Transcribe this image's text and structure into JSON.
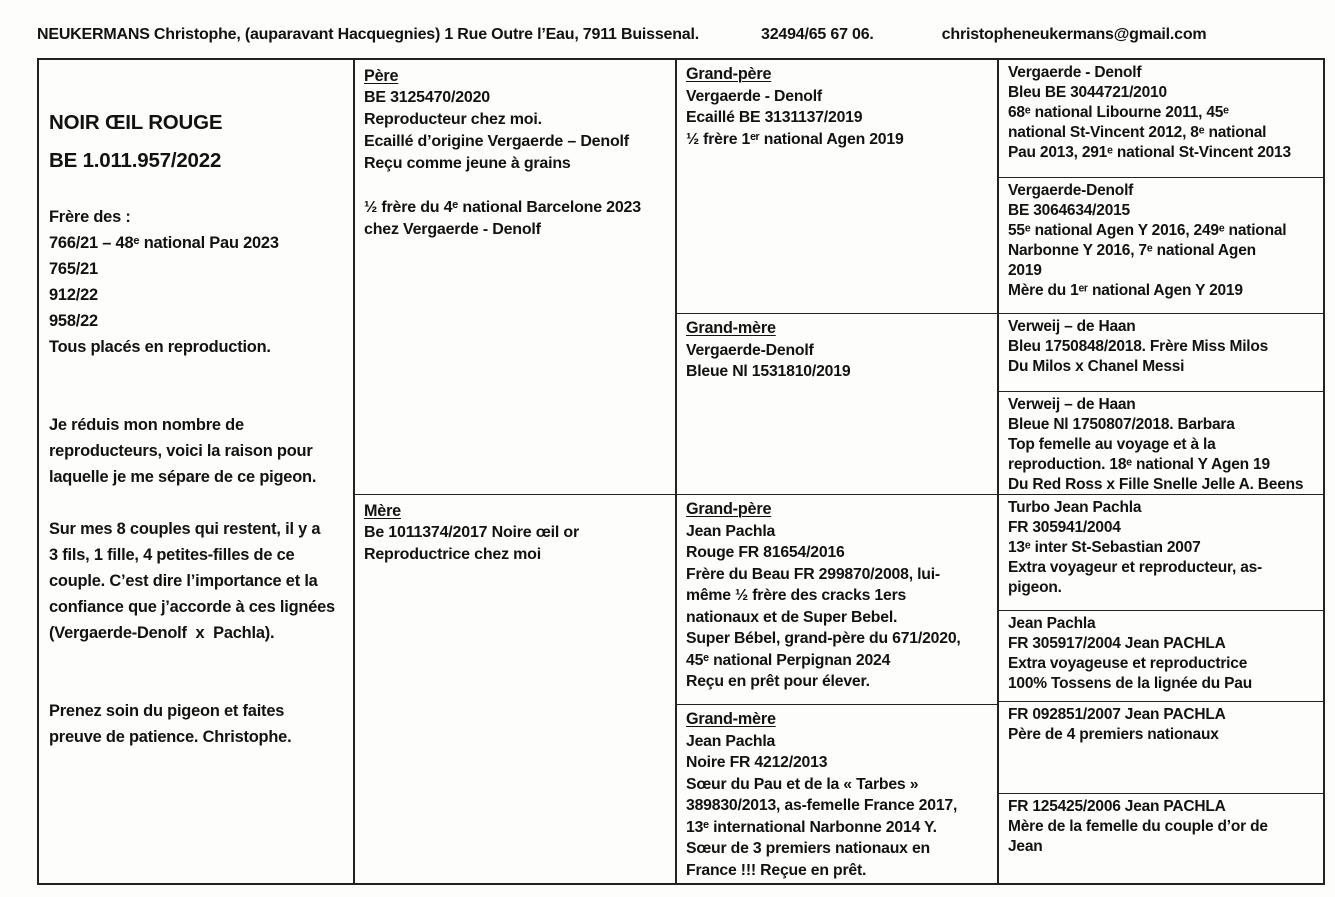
{
  "header": {
    "owner": "NEUKERMANS Christophe, (auparavant Hacquegnies) 1 Rue Outre l’Eau, 7911 Buissenal.",
    "phone": "32494/65 67 06.",
    "email": "christopheneukermans@gmail.com"
  },
  "subject": {
    "title": "NOIR ŒIL ROUGE\nBE 1.011.957/2022",
    "notes": "Frère des :\n766/21 – 48ᵉ national Pau 2023\n765/21\n912/22\n958/22\nTous placés en reproduction.\n\n\nJe réduis mon nombre de\nreproducteurs, voici la raison pour\nlaquelle je me sépare de ce pigeon.\n\nSur mes 8 couples qui restent, il y a\n3 fils, 1 fille, 4 petites-filles de ce\ncouple. C’est dire l’importance et la\nconfiance que j’accorde à ces lignées\n(Vergaerde-Denolf  x  Pachla).\n\n\nPrenez soin du pigeon et faites\npreuve de patience. Christophe."
  },
  "pedigree": {
    "pere": {
      "label": "Père",
      "text": "BE 3125470/2020\nReproducteur chez moi.\nEcaillé d’origine Vergaerde – Denolf\nReçu comme jeune à grains\n\n½ frère du 4ᵉ national Barcelone 2023\nchez Vergaerde - Denolf"
    },
    "mere": {
      "label": "Mère",
      "text": "Be 1011374/2017 Noire œil or\nReproductrice chez moi"
    },
    "gp1": {
      "label": "Grand-père",
      "text": "Vergaerde - Denolf\nEcaillé BE 3131137/2019\n½ frère 1ᵉʳ national Agen 2019"
    },
    "gm1": {
      "label": "Grand-mère",
      "text": "Vergaerde-Denolf\nBleue Nl 1531810/2019"
    },
    "gp2": {
      "label": "Grand-père",
      "text": "Jean Pachla\nRouge FR 81654/2016\nFrère du Beau FR 299870/2008, lui-\nmême ½ frère des cracks 1ers\nnationaux et de Super Bebel.\nSuper Bébel, grand-père du 671/2020,\n45ᵉ national Perpignan 2024\nReçu en prêt pour élever."
    },
    "gm2": {
      "label": "Grand-mère",
      "text": "Jean Pachla\nNoire FR 4212/2013\nSœur du Pau et de la « Tarbes »\n389830/2013, as-femelle France 2017,\n13ᵉ international Narbonne 2014 Y.\nSœur de 3 premiers nationaux en\nFrance !!! Reçue en prêt."
    },
    "greats": {
      "g1": {
        "text": "Vergaerde - Denolf\nBleu BE 3044721/2010\n68ᵉ national Libourne 2011, 45ᵉ\nnational St-Vincent 2012, 8ᵉ national\nPau 2013, 291ᵉ national St-Vincent 2013"
      },
      "g2": {
        "text": "Vergaerde-Denolf\nBE 3064634/2015\n55ᵉ national Agen Y 2016, 249ᵉ national\nNarbonne Y 2016, 7ᵉ national Agen\n2019\nMère du 1ᵉʳ national Agen Y 2019"
      },
      "g3": {
        "text": "Verweij – de Haan\nBleu 1750848/2018. Frère Miss Milos\nDu Milos x Chanel Messi"
      },
      "g4": {
        "text": "Verweij – de Haan\nBleue Nl 1750807/2018. Barbara\nTop femelle au voyage et à la\nreproduction. 18ᵉ national Y Agen 19\nDu Red Ross x Fille Snelle Jelle A. Beens"
      },
      "g5": {
        "text": "Turbo Jean Pachla\nFR 305941/2004\n13ᵉ inter St-Sebastian 2007\nExtra voyageur et reproducteur, as-\npigeon."
      },
      "g6": {
        "text": "Jean Pachla\nFR 305917/2004 Jean PACHLA\nExtra voyageuse et reproductrice\n100% Tossens de la lignée du Pau"
      },
      "g7": {
        "text": "FR 092851/2007 Jean PACHLA\nPère de 4 premiers nationaux"
      },
      "g8": {
        "text": "FR 125425/2006 Jean PACHLA\nMère de la femelle du couple d’or de\nJean"
      }
    }
  }
}
